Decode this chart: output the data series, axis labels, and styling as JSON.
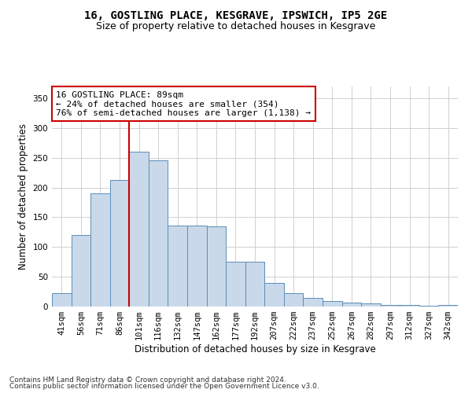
{
  "title": "16, GOSTLING PLACE, KESGRAVE, IPSWICH, IP5 2GE",
  "subtitle": "Size of property relative to detached houses in Kesgrave",
  "xlabel": "Distribution of detached houses by size in Kesgrave",
  "ylabel": "Number of detached properties",
  "categories": [
    "41sqm",
    "56sqm",
    "71sqm",
    "86sqm",
    "101sqm",
    "116sqm",
    "132sqm",
    "147sqm",
    "162sqm",
    "177sqm",
    "192sqm",
    "207sqm",
    "222sqm",
    "237sqm",
    "252sqm",
    "267sqm",
    "282sqm",
    "297sqm",
    "312sqm",
    "327sqm",
    "342sqm"
  ],
  "values": [
    22,
    120,
    190,
    213,
    260,
    246,
    136,
    136,
    135,
    75,
    75,
    40,
    23,
    15,
    9,
    6,
    5,
    2,
    3,
    1,
    2
  ],
  "bar_color": "#c9d9ea",
  "bar_edge_color": "#5b8db8",
  "redline_index": 3,
  "annotation_text": "16 GOSTLING PLACE: 89sqm\n← 24% of detached houses are smaller (354)\n76% of semi-detached houses are larger (1,138) →",
  "annotation_box_color": "#ffffff",
  "annotation_box_edge": "#cc0000",
  "redline_color": "#cc0000",
  "grid_color": "#d0d0d0",
  "footer1": "Contains HM Land Registry data © Crown copyright and database right 2024.",
  "footer2": "Contains public sector information licensed under the Open Government Licence v3.0.",
  "ylim": [
    0,
    370
  ],
  "yticks": [
    0,
    50,
    100,
    150,
    200,
    250,
    300,
    350
  ],
  "title_fontsize": 10,
  "subtitle_fontsize": 9,
  "axis_label_fontsize": 8.5,
  "tick_fontsize": 7.5,
  "annotation_fontsize": 8,
  "footer_fontsize": 6.5
}
